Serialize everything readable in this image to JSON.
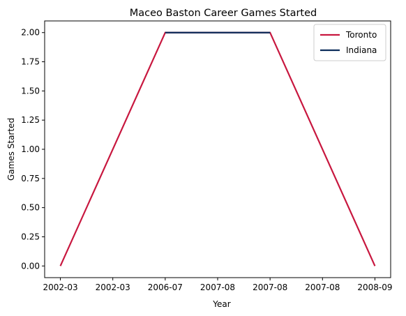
{
  "chart_data": {
    "type": "line",
    "title": "Maceo Baston Career Games Started",
    "xlabel": "Year",
    "ylabel": "Games Started",
    "x_tick_labels": [
      "2002-03",
      "2002-03",
      "2006-07",
      "2007-08",
      "2007-08",
      "2007-08",
      "2008-09"
    ],
    "y_ticks": [
      "0.00",
      "0.25",
      "0.50",
      "0.75",
      "1.00",
      "1.25",
      "1.50",
      "1.75",
      "2.00"
    ],
    "ylim": [
      -0.1,
      2.1
    ],
    "xlim": [
      -0.3,
      6.3
    ],
    "grid": false,
    "legend_position": "top-right",
    "series": [
      {
        "name": "Toronto",
        "color": "#c8173f",
        "x": [
          0,
          2,
          4,
          6
        ],
        "y": [
          0,
          2,
          2,
          0
        ]
      },
      {
        "name": "Indiana",
        "color": "#0b2d5b",
        "x": [
          2,
          4
        ],
        "y": [
          2,
          2
        ]
      }
    ]
  }
}
